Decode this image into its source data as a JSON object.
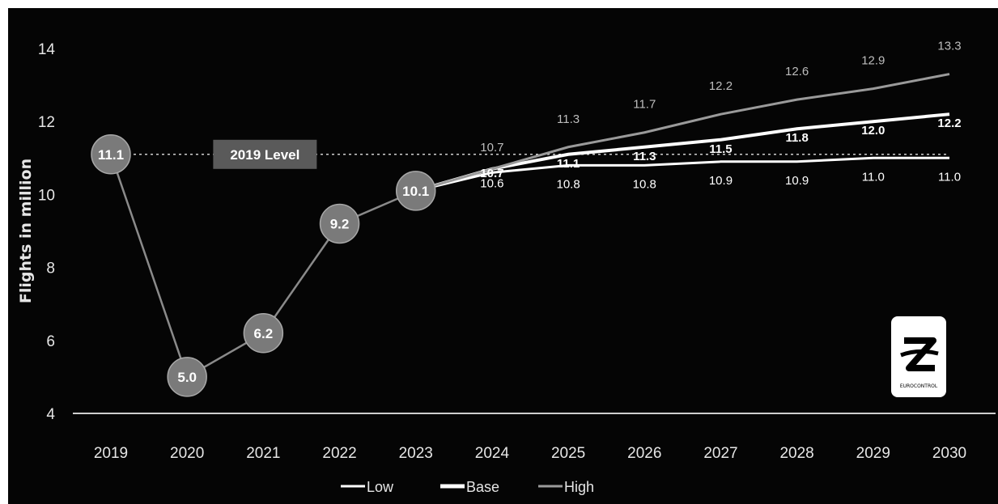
{
  "chart_data": {
    "type": "line",
    "title": "",
    "xlabel": "",
    "ylabel": "Flights in million",
    "ylim": [
      4,
      14
    ],
    "yticks": [
      4,
      6,
      8,
      10,
      12,
      14
    ],
    "x": [
      "2019",
      "2020",
      "2021",
      "2022",
      "2023",
      "2024",
      "2025",
      "2026",
      "2027",
      "2028",
      "2029",
      "2030"
    ],
    "grid": false,
    "legend_position": "bottom",
    "reference_line": {
      "label": "2019 Level",
      "value": 11.1
    },
    "history": {
      "x": [
        "2019",
        "2020",
        "2021",
        "2022",
        "2023"
      ],
      "values": [
        11.1,
        5.0,
        6.2,
        9.2,
        10.1
      ],
      "labels": [
        "11.1",
        "5.0",
        "6.2",
        "9.2",
        "10.1"
      ]
    },
    "series": [
      {
        "name": "Low",
        "x": [
          "2023",
          "2024",
          "2025",
          "2026",
          "2027",
          "2028",
          "2029",
          "2030"
        ],
        "values": [
          10.1,
          10.6,
          10.8,
          10.8,
          10.9,
          10.9,
          11.0,
          11.0
        ],
        "labels": [
          "",
          "10.6",
          "10.8",
          "10.8",
          "10.9",
          "10.9",
          "11.0",
          "11.0"
        ]
      },
      {
        "name": "Base",
        "x": [
          "2023",
          "2024",
          "2025",
          "2026",
          "2027",
          "2028",
          "2029",
          "2030"
        ],
        "values": [
          10.1,
          10.7,
          11.1,
          11.3,
          11.5,
          11.8,
          12.0,
          12.2
        ],
        "labels": [
          "",
          "10.7",
          "11.1",
          "11.3",
          "11.5",
          "11.8",
          "12.0",
          "12.2"
        ]
      },
      {
        "name": "High",
        "x": [
          "2023",
          "2024",
          "2025",
          "2026",
          "2027",
          "2028",
          "2029",
          "2030"
        ],
        "values": [
          10.1,
          10.7,
          11.3,
          11.7,
          12.2,
          12.6,
          12.9,
          13.3
        ],
        "labels": [
          "",
          "10.7",
          "11.3",
          "11.7",
          "12.2",
          "12.6",
          "12.9",
          "13.3"
        ]
      }
    ],
    "colors": {
      "Low": "#ffffff",
      "Base": "#ffffff",
      "High": "#9a9a9a",
      "history": "#8a8a8a",
      "marker": "#7a7a7a"
    }
  },
  "logo": {
    "icon": "eurocontrol-logo-icon",
    "text": "EUROCONTROL"
  }
}
